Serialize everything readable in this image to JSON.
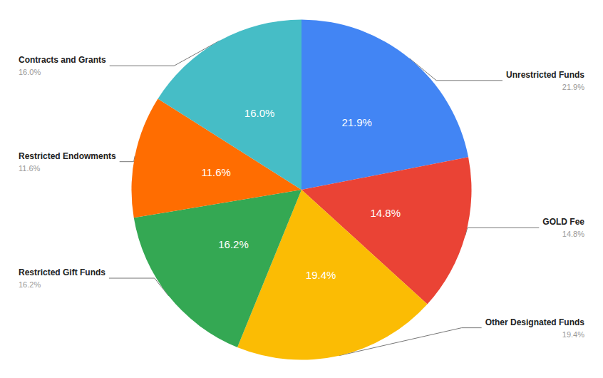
{
  "chart_data": {
    "type": "pie",
    "categories": [
      "Unrestricted Funds",
      "GOLD Fee",
      "Other Designated Funds",
      "Restricted Gift Funds",
      "Restricted Endowments",
      "Contracts and Grants"
    ],
    "values": [
      21.9,
      14.8,
      19.4,
      16.2,
      11.6,
      16.0
    ],
    "value_labels": [
      "21.9%",
      "14.8%",
      "19.4%",
      "16.2%",
      "11.6%",
      "16.0%"
    ],
    "colors": [
      "#4285f4",
      "#ea4335",
      "#fbbc04",
      "#34a853",
      "#ff6d01",
      "#46bdc6"
    ],
    "data_labels": true
  }
}
